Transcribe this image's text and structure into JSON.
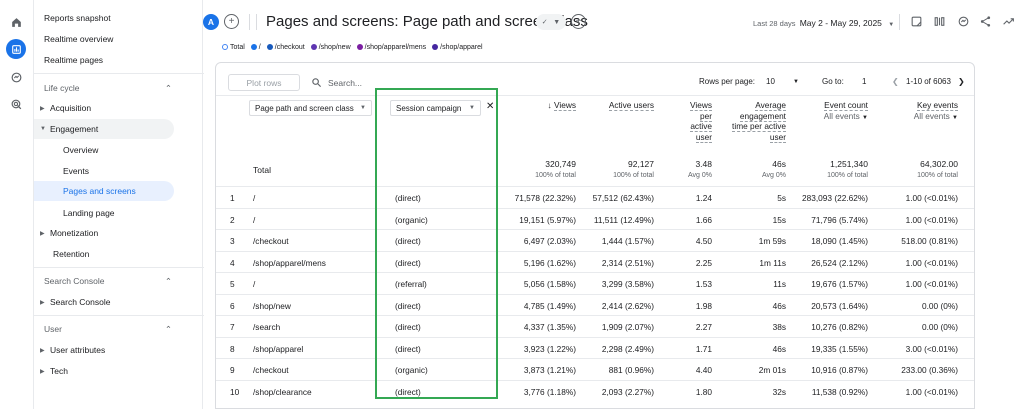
{
  "rail": {
    "icons": [
      "home-icon",
      "reports-icon",
      "explore-icon",
      "advertising-icon"
    ]
  },
  "sidebar": {
    "reports_snapshot": "Reports snapshot",
    "realtime_overview": "Realtime overview",
    "realtime_pages": "Realtime pages",
    "lifecycle_heading": "Life cycle",
    "acquisition": "Acquisition",
    "engagement": "Engagement",
    "overview": "Overview",
    "events": "Events",
    "pages_and_screens": "Pages and screens",
    "landing_page": "Landing page",
    "monetization": "Monetization",
    "retention": "Retention",
    "search_console_heading": "Search Console",
    "search_console": "Search Console",
    "user_heading": "User",
    "user_attributes": "User attributes",
    "tech": "Tech"
  },
  "header": {
    "avatar_letter": "A",
    "title": "Pages and screens: Page path and screen class",
    "date_label": "Last 28 days",
    "date_range": "May 2 - May 29, 2025"
  },
  "legend": [
    "Total",
    "/",
    "/checkout",
    "/shop/new",
    "/shop/apparel/mens",
    "/shop/apparel"
  ],
  "legend_colors": [
    "#4285f4",
    "#1a73e8",
    "#185abc",
    "#5e35b1",
    "#7b1fa2",
    "#4527a0"
  ],
  "toolbar": {
    "plot_rows": "Plot rows",
    "search_placeholder": "Search...",
    "rows_per_page_label": "Rows per page:",
    "rows_per_page": "10",
    "goto_label": "Go to:",
    "goto_value": "1",
    "page_range": "1-10 of 6063"
  },
  "table": {
    "dim1": "Page path and screen class",
    "dim2": "Session campaign",
    "total_label": "Total",
    "columns": [
      {
        "label": "Views",
        "total": "320,749",
        "sub": "100% of total"
      },
      {
        "label": "Active users",
        "total": "92,127",
        "sub": "100% of total"
      },
      {
        "label": "Views per active user",
        "total": "3.48",
        "sub": "Avg 0%"
      },
      {
        "label": "Average engagement time per active user",
        "total": "46s",
        "sub": "Avg 0%"
      },
      {
        "label": "Event count",
        "filter": "All events",
        "total": "1,251,340",
        "sub": "100% of total"
      },
      {
        "label": "Key events",
        "filter": "All events",
        "total": "64,302.00",
        "sub": "100% of total"
      }
    ],
    "rows": [
      {
        "n": "1",
        "path": "/",
        "campaign": "(direct)",
        "views": "71,578 (22.32%)",
        "users": "57,512 (62.43%)",
        "vpu": "1.24",
        "time": "5s",
        "events": "283,093 (22.62%)",
        "keys": "1.00 (<0.01%)"
      },
      {
        "n": "2",
        "path": "/",
        "campaign": "(organic)",
        "views": "19,151 (5.97%)",
        "users": "11,511 (12.49%)",
        "vpu": "1.66",
        "time": "15s",
        "events": "71,796 (5.74%)",
        "keys": "1.00 (<0.01%)"
      },
      {
        "n": "3",
        "path": "/checkout",
        "campaign": "(direct)",
        "views": "6,497 (2.03%)",
        "users": "1,444 (1.57%)",
        "vpu": "4.50",
        "time": "1m 59s",
        "events": "18,090 (1.45%)",
        "keys": "518.00 (0.81%)"
      },
      {
        "n": "4",
        "path": "/shop/apparel/mens",
        "campaign": "(direct)",
        "views": "5,196 (1.62%)",
        "users": "2,314 (2.51%)",
        "vpu": "2.25",
        "time": "1m 11s",
        "events": "26,524 (2.12%)",
        "keys": "1.00 (<0.01%)"
      },
      {
        "n": "5",
        "path": "/",
        "campaign": "(referral)",
        "views": "5,056 (1.58%)",
        "users": "3,299 (3.58%)",
        "vpu": "1.53",
        "time": "11s",
        "events": "19,676 (1.57%)",
        "keys": "1.00 (<0.01%)"
      },
      {
        "n": "6",
        "path": "/shop/new",
        "campaign": "(direct)",
        "views": "4,785 (1.49%)",
        "users": "2,414 (2.62%)",
        "vpu": "1.98",
        "time": "46s",
        "events": "20,573 (1.64%)",
        "keys": "0.00 (0%)"
      },
      {
        "n": "7",
        "path": "/search",
        "campaign": "(direct)",
        "views": "4,337 (1.35%)",
        "users": "1,909 (2.07%)",
        "vpu": "2.27",
        "time": "38s",
        "events": "10,276 (0.82%)",
        "keys": "0.00 (0%)"
      },
      {
        "n": "8",
        "path": "/shop/apparel",
        "campaign": "(direct)",
        "views": "3,923 (1.22%)",
        "users": "2,298 (2.49%)",
        "vpu": "1.71",
        "time": "46s",
        "events": "19,335 (1.55%)",
        "keys": "3.00 (<0.01%)"
      },
      {
        "n": "9",
        "path": "/checkout",
        "campaign": "(organic)",
        "views": "3,873 (1.21%)",
        "users": "881 (0.96%)",
        "vpu": "4.40",
        "time": "2m 01s",
        "events": "10,916 (0.87%)",
        "keys": "233.00 (0.36%)"
      },
      {
        "n": "10",
        "path": "/shop/clearance",
        "campaign": "(direct)",
        "views": "3,776 (1.18%)",
        "users": "2,093 (2.27%)",
        "vpu": "1.80",
        "time": "32s",
        "events": "11,538 (0.92%)",
        "keys": "1.00 (<0.01%)"
      }
    ]
  },
  "highlight_color": "#34a853"
}
